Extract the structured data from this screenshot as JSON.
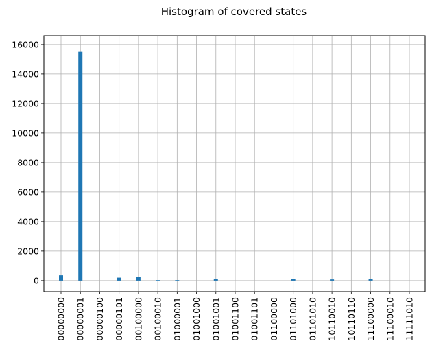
{
  "chart_data": {
    "type": "bar",
    "title": "Histogram of covered states",
    "xlabel": "",
    "ylabel": "",
    "categories": [
      "00000000",
      "00000001",
      "00000100",
      "00000101",
      "00100000",
      "00100010",
      "01000001",
      "01001000",
      "01001001",
      "01001100",
      "01001101",
      "01100000",
      "01101000",
      "01101010",
      "10110010",
      "10110110",
      "11100000",
      "11100010",
      "11111010"
    ],
    "values": [
      360,
      15500,
      0,
      200,
      270,
      30,
      30,
      0,
      120,
      0,
      0,
      0,
      90,
      0,
      80,
      0,
      120,
      0,
      0
    ],
    "ylim": [
      -750,
      16600
    ],
    "yticks": [
      0,
      2000,
      4000,
      6000,
      8000,
      10000,
      12000,
      14000,
      16000
    ],
    "grid": true,
    "bar_color": "#1f77b4"
  }
}
